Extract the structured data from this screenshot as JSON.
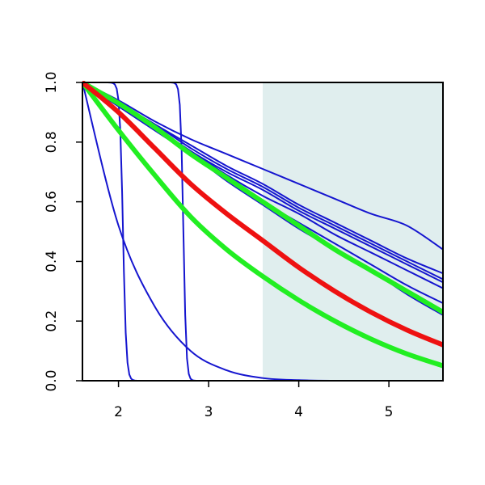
{
  "chart_data": {
    "type": "line",
    "title": "",
    "xlabel": "",
    "ylabel": "",
    "xlim": [
      1.6,
      5.6
    ],
    "ylim": [
      0,
      1
    ],
    "grid": false,
    "x_ticks": [
      2,
      3,
      4,
      5
    ],
    "y_ticks": [
      0.0,
      0.2,
      0.4,
      0.6,
      0.8,
      1.0
    ],
    "x_tick_labels": [
      "2",
      "3",
      "4",
      "5"
    ],
    "y_tick_labels": [
      "0.0",
      "0.2",
      "0.4",
      "0.6",
      "0.8",
      "1.0"
    ],
    "shaded_region": {
      "x": [
        3.6,
        5.6
      ],
      "color": "#e0eeee"
    },
    "x_sample": [
      1.6,
      2.0,
      2.4,
      2.8,
      3.2,
      3.6,
      4.0,
      4.4,
      4.8,
      5.2,
      5.6
    ],
    "series": [
      {
        "style": "thin",
        "color": "#1515cf",
        "values": [
          1.0,
          0.94,
          0.87,
          0.81,
          0.76,
          0.71,
          0.66,
          0.61,
          0.56,
          0.52,
          0.44
        ]
      },
      {
        "style": "thin",
        "color": "#1515cf",
        "values": [
          1.0,
          0.93,
          0.86,
          0.79,
          0.72,
          0.66,
          0.59,
          0.53,
          0.47,
          0.41,
          0.36
        ]
      },
      {
        "style": "thin",
        "color": "#1515cf",
        "values": [
          1.0,
          0.93,
          0.86,
          0.78,
          0.71,
          0.65,
          0.58,
          0.52,
          0.46,
          0.4,
          0.34
        ]
      },
      {
        "style": "thin",
        "color": "#1515cf",
        "values": [
          1.0,
          0.93,
          0.85,
          0.77,
          0.7,
          0.64,
          0.57,
          0.51,
          0.45,
          0.39,
          0.33
        ]
      },
      {
        "style": "thin",
        "color": "#1515cf",
        "values": [
          1.0,
          0.93,
          0.85,
          0.77,
          0.69,
          0.62,
          0.56,
          0.49,
          0.43,
          0.37,
          0.31
        ]
      },
      {
        "style": "thin",
        "color": "#1515cf",
        "values": [
          1.0,
          0.92,
          0.84,
          0.76,
          0.68,
          0.6,
          0.53,
          0.46,
          0.39,
          0.32,
          0.26
        ]
      },
      {
        "style": "thin",
        "color": "#1515cf",
        "values": [
          1.0,
          0.92,
          0.84,
          0.76,
          0.67,
          0.59,
          0.51,
          0.44,
          0.37,
          0.29,
          0.22
        ]
      },
      {
        "style": "thin",
        "color": "#1515cf",
        "values": [
          1.0,
          0.52,
          0.25,
          0.1,
          0.035,
          0.009,
          0.002,
          0.0,
          0.0,
          0.0,
          0.0
        ]
      },
      {
        "style": "thin",
        "color": "#1515cf",
        "step": {
          "at": 2.05,
          "width": 0.04
        }
      },
      {
        "style": "thin",
        "color": "#1515cf",
        "step": {
          "at": 2.72,
          "width": 0.035
        }
      },
      {
        "style": "thick",
        "color": "#22ee22",
        "values": [
          1.0,
          0.93,
          0.85,
          0.76,
          0.68,
          0.6,
          0.52,
          0.44,
          0.37,
          0.3,
          0.23
        ]
      },
      {
        "style": "thick",
        "color": "#22ee22",
        "values": [
          1.0,
          0.84,
          0.69,
          0.55,
          0.44,
          0.35,
          0.27,
          0.2,
          0.14,
          0.09,
          0.05
        ]
      },
      {
        "style": "thick",
        "color": "#ee1111",
        "values": [
          1.0,
          0.9,
          0.78,
          0.66,
          0.56,
          0.47,
          0.38,
          0.3,
          0.23,
          0.17,
          0.12
        ]
      }
    ]
  }
}
